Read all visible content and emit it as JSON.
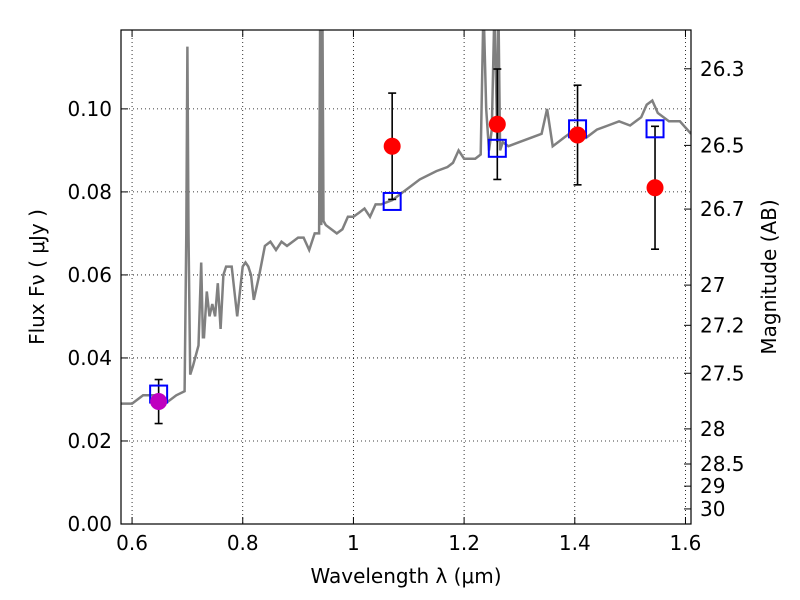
{
  "chart_data": {
    "type": "scatter",
    "xlabel": "Wavelength  λ (μm)",
    "ylabel": "Flux  Fν  ( μJy )",
    "ylabel_right": "Magnitude (AB)",
    "xlim": [
      0.58,
      1.61
    ],
    "ylim": [
      0.0,
      0.119
    ],
    "grid": true,
    "x_ticks": [
      {
        "value": 0.6,
        "label": "0.6"
      },
      {
        "value": 0.8,
        "label": "0.8"
      },
      {
        "value": 1.0,
        "label": "1"
      },
      {
        "value": 1.2,
        "label": "1.2"
      },
      {
        "value": 1.4,
        "label": "1.4"
      },
      {
        "value": 1.6,
        "label": "1.6"
      }
    ],
    "y_ticks": [
      {
        "value": 0.0,
        "label": "0.00"
      },
      {
        "value": 0.02,
        "label": "0.02"
      },
      {
        "value": 0.04,
        "label": "0.04"
      },
      {
        "value": 0.06,
        "label": "0.06"
      },
      {
        "value": 0.08,
        "label": "0.08"
      },
      {
        "value": 0.1,
        "label": "0.10"
      }
    ],
    "mag_ticks": [
      {
        "mag": 26.3,
        "label": "26.3"
      },
      {
        "mag": 26.5,
        "label": "26.5"
      },
      {
        "mag": 26.7,
        "label": "26.7"
      },
      {
        "mag": 27.0,
        "label": "27"
      },
      {
        "mag": 27.2,
        "label": "27.2"
      },
      {
        "mag": 27.5,
        "label": "27.5"
      },
      {
        "mag": 28.0,
        "label": "28"
      },
      {
        "mag": 28.5,
        "label": "28.5"
      },
      {
        "mag": 29.0,
        "label": "29"
      },
      {
        "mag": 30.0,
        "label": "30"
      }
    ],
    "colors": {
      "model": "#808080",
      "observed": "#ff0000",
      "observed_first": "#bf00bf",
      "model_photometry": "#0000ff",
      "errorbar": "#000000"
    },
    "model_spectrum": {
      "x": [
        0.58,
        0.6,
        0.62,
        0.64,
        0.66,
        0.68,
        0.695,
        0.698,
        0.7,
        0.702,
        0.705,
        0.71,
        0.72,
        0.725,
        0.728,
        0.73,
        0.735,
        0.74,
        0.745,
        0.75,
        0.755,
        0.76,
        0.765,
        0.77,
        0.78,
        0.79,
        0.8,
        0.805,
        0.81,
        0.815,
        0.82,
        0.83,
        0.84,
        0.85,
        0.86,
        0.87,
        0.88,
        0.89,
        0.9,
        0.91,
        0.92,
        0.93,
        0.938,
        0.94,
        0.942,
        0.944,
        0.946,
        0.95,
        0.96,
        0.97,
        0.98,
        0.99,
        1.0,
        1.01,
        1.02,
        1.03,
        1.04,
        1.05,
        1.07,
        1.1,
        1.12,
        1.15,
        1.17,
        1.18,
        1.19,
        1.2,
        1.21,
        1.22,
        1.23,
        1.235,
        1.24,
        1.245,
        1.25,
        1.255,
        1.26,
        1.262,
        1.265,
        1.27,
        1.28,
        1.3,
        1.32,
        1.34,
        1.35,
        1.36,
        1.37,
        1.38,
        1.39,
        1.4,
        1.42,
        1.44,
        1.46,
        1.48,
        1.5,
        1.52,
        1.53,
        1.54,
        1.55,
        1.57,
        1.59,
        1.61
      ],
      "y": [
        0.029,
        0.029,
        0.031,
        0.031,
        0.029,
        0.031,
        0.032,
        0.07,
        0.115,
        0.07,
        0.036,
        0.038,
        0.043,
        0.063,
        0.045,
        0.045,
        0.056,
        0.05,
        0.053,
        0.05,
        0.058,
        0.047,
        0.06,
        0.062,
        0.062,
        0.05,
        0.062,
        0.063,
        0.062,
        0.06,
        0.054,
        0.06,
        0.067,
        0.068,
        0.066,
        0.068,
        0.067,
        0.068,
        0.069,
        0.069,
        0.066,
        0.07,
        0.07,
        0.125,
        0.072,
        0.125,
        0.073,
        0.072,
        0.071,
        0.07,
        0.071,
        0.074,
        0.074,
        0.075,
        0.076,
        0.074,
        0.077,
        0.077,
        0.078,
        0.081,
        0.083,
        0.085,
        0.086,
        0.087,
        0.09,
        0.088,
        0.088,
        0.088,
        0.089,
        0.125,
        0.1,
        0.09,
        0.095,
        0.125,
        0.092,
        0.125,
        0.09,
        0.092,
        0.091,
        0.092,
        0.093,
        0.094,
        0.1,
        0.091,
        0.092,
        0.093,
        0.094,
        0.095,
        0.093,
        0.095,
        0.096,
        0.097,
        0.096,
        0.098,
        0.101,
        0.102,
        0.099,
        0.097,
        0.097,
        0.094
      ]
    },
    "observed": [
      {
        "x": 0.648,
        "y": 0.0295,
        "err": 0.0053
      },
      {
        "x": 1.07,
        "y": 0.091,
        "err": 0.0128
      },
      {
        "x": 1.26,
        "y": 0.0963,
        "err": 0.0133
      },
      {
        "x": 1.405,
        "y": 0.0937,
        "err": 0.012
      },
      {
        "x": 1.545,
        "y": 0.081,
        "err": 0.0148
      }
    ],
    "model_photometry": [
      {
        "x": 0.648,
        "y": 0.0313
      },
      {
        "x": 1.07,
        "y": 0.0777
      },
      {
        "x": 1.26,
        "y": 0.0905
      },
      {
        "x": 1.405,
        "y": 0.0952
      },
      {
        "x": 1.545,
        "y": 0.0952
      }
    ]
  }
}
